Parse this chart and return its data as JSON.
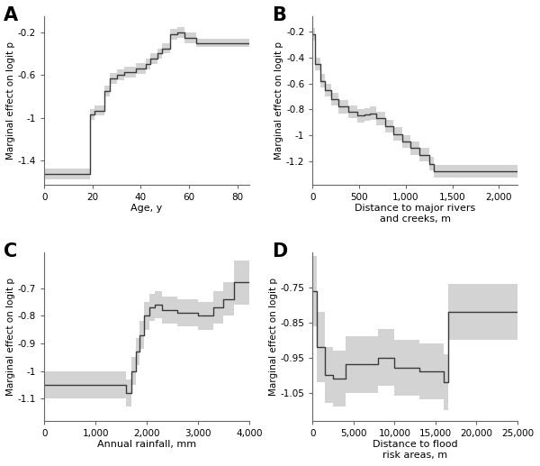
{
  "panel_labels": [
    "A",
    "B",
    "C",
    "D"
  ],
  "ylabel": "Marginal effect on logit p",
  "line_color": "#3a3a3a",
  "ci_color": "#b0b0b0",
  "ci_alpha": 0.55,
  "line_width": 1.0,
  "background_color": "#ffffff",
  "A": {
    "xlabel": "Age, y",
    "xlim": [
      0,
      85
    ],
    "ylim": [
      -1.62,
      -0.05
    ],
    "yticks": [
      -0.2,
      -0.6,
      -1.0,
      -1.4
    ],
    "xticks": [
      0,
      20,
      40,
      60,
      80
    ],
    "x": [
      0,
      19,
      19,
      21,
      21,
      25,
      25,
      27,
      27,
      30,
      30,
      33,
      33,
      38,
      38,
      42,
      42,
      44,
      44,
      47,
      47,
      49,
      49,
      52,
      52,
      55,
      55,
      58,
      58,
      63,
      63,
      85
    ],
    "y": [
      -1.52,
      -1.52,
      -0.97,
      -0.97,
      -0.93,
      -0.93,
      -0.75,
      -0.75,
      -0.63,
      -0.63,
      -0.6,
      -0.6,
      -0.57,
      -0.57,
      -0.54,
      -0.54,
      -0.5,
      -0.5,
      -0.45,
      -0.45,
      -0.4,
      -0.4,
      -0.35,
      -0.35,
      -0.22,
      -0.22,
      -0.2,
      -0.2,
      -0.25,
      -0.25,
      -0.3,
      -0.3
    ],
    "ci_lower": [
      -1.57,
      -1.57,
      -1.02,
      -1.02,
      -0.98,
      -0.98,
      -0.8,
      -0.8,
      -0.68,
      -0.68,
      -0.65,
      -0.65,
      -0.62,
      -0.62,
      -0.59,
      -0.59,
      -0.55,
      -0.55,
      -0.5,
      -0.5,
      -0.45,
      -0.45,
      -0.4,
      -0.4,
      -0.27,
      -0.27,
      -0.25,
      -0.25,
      -0.3,
      -0.3,
      -0.34,
      -0.34
    ],
    "ci_upper": [
      -1.47,
      -1.47,
      -0.92,
      -0.92,
      -0.88,
      -0.88,
      -0.7,
      -0.7,
      -0.58,
      -0.58,
      -0.55,
      -0.55,
      -0.52,
      -0.52,
      -0.49,
      -0.49,
      -0.45,
      -0.45,
      -0.4,
      -0.4,
      -0.35,
      -0.35,
      -0.3,
      -0.3,
      -0.17,
      -0.17,
      -0.15,
      -0.15,
      -0.2,
      -0.2,
      -0.26,
      -0.26
    ]
  },
  "B": {
    "xlabel": "Distance to major rivers\nand creeks, m",
    "xlim": [
      0,
      2200
    ],
    "ylim": [
      -1.38,
      -0.08
    ],
    "yticks": [
      -0.2,
      -0.4,
      -0.6,
      -0.8,
      -1.0,
      -1.2
    ],
    "xticks": [
      0,
      500,
      1000,
      1500,
      2000
    ],
    "x": [
      0,
      30,
      30,
      80,
      80,
      130,
      130,
      200,
      200,
      280,
      280,
      380,
      380,
      480,
      480,
      560,
      560,
      620,
      620,
      680,
      680,
      780,
      780,
      870,
      870,
      960,
      960,
      1050,
      1050,
      1150,
      1150,
      1250,
      1250,
      1300,
      1300,
      2200
    ],
    "y": [
      -0.22,
      -0.22,
      -0.45,
      -0.45,
      -0.58,
      -0.58,
      -0.65,
      -0.65,
      -0.72,
      -0.72,
      -0.78,
      -0.78,
      -0.82,
      -0.82,
      -0.85,
      -0.85,
      -0.84,
      -0.84,
      -0.83,
      -0.83,
      -0.87,
      -0.87,
      -0.93,
      -0.93,
      -0.99,
      -0.99,
      -1.05,
      -1.05,
      -1.1,
      -1.1,
      -1.15,
      -1.15,
      -1.22,
      -1.22,
      -1.28,
      -1.28
    ],
    "ci_lower": [
      -0.27,
      -0.27,
      -0.5,
      -0.5,
      -0.63,
      -0.63,
      -0.7,
      -0.7,
      -0.77,
      -0.77,
      -0.83,
      -0.83,
      -0.87,
      -0.87,
      -0.9,
      -0.9,
      -0.89,
      -0.89,
      -0.88,
      -0.88,
      -0.92,
      -0.92,
      -0.98,
      -0.98,
      -1.04,
      -1.04,
      -1.1,
      -1.1,
      -1.15,
      -1.15,
      -1.2,
      -1.2,
      -1.27,
      -1.27,
      -1.33,
      -1.33
    ],
    "ci_upper": [
      -0.17,
      -0.17,
      -0.4,
      -0.4,
      -0.53,
      -0.53,
      -0.6,
      -0.6,
      -0.67,
      -0.67,
      -0.73,
      -0.73,
      -0.77,
      -0.77,
      -0.8,
      -0.8,
      -0.79,
      -0.79,
      -0.78,
      -0.78,
      -0.82,
      -0.82,
      -0.88,
      -0.88,
      -0.94,
      -0.94,
      -1.0,
      -1.0,
      -1.05,
      -1.05,
      -1.1,
      -1.1,
      -1.17,
      -1.17,
      -1.23,
      -1.23
    ]
  },
  "C": {
    "xlabel": "Annual rainfall, mm",
    "xlim": [
      0,
      4000
    ],
    "ylim": [
      -1.18,
      -0.57
    ],
    "yticks": [
      -0.7,
      -0.8,
      -0.9,
      -1.0,
      -1.1
    ],
    "xticks": [
      0,
      1000,
      2000,
      3000,
      4000
    ],
    "x": [
      0,
      1600,
      1600,
      1700,
      1700,
      1780,
      1780,
      1850,
      1850,
      1950,
      1950,
      2050,
      2050,
      2150,
      2150,
      2300,
      2300,
      2600,
      2600,
      3000,
      3000,
      3300,
      3300,
      3500,
      3500,
      3700,
      3700,
      4000
    ],
    "y": [
      -1.05,
      -1.05,
      -1.08,
      -1.08,
      -1.0,
      -1.0,
      -0.93,
      -0.93,
      -0.87,
      -0.87,
      -0.8,
      -0.8,
      -0.77,
      -0.77,
      -0.76,
      -0.76,
      -0.78,
      -0.78,
      -0.79,
      -0.79,
      -0.8,
      -0.8,
      -0.77,
      -0.77,
      -0.74,
      -0.74,
      -0.68,
      -0.68
    ],
    "ci_lower": [
      -1.1,
      -1.1,
      -1.13,
      -1.13,
      -1.05,
      -1.05,
      -0.98,
      -0.98,
      -0.92,
      -0.92,
      -0.85,
      -0.85,
      -0.82,
      -0.82,
      -0.81,
      -0.81,
      -0.83,
      -0.83,
      -0.84,
      -0.84,
      -0.85,
      -0.85,
      -0.83,
      -0.83,
      -0.8,
      -0.8,
      -0.76,
      -0.76
    ],
    "ci_upper": [
      -1.0,
      -1.0,
      -1.03,
      -1.03,
      -0.95,
      -0.95,
      -0.88,
      -0.88,
      -0.82,
      -0.82,
      -0.75,
      -0.75,
      -0.72,
      -0.72,
      -0.71,
      -0.71,
      -0.73,
      -0.73,
      -0.74,
      -0.74,
      -0.75,
      -0.75,
      -0.71,
      -0.71,
      -0.68,
      -0.68,
      -0.6,
      -0.6
    ]
  },
  "D": {
    "xlabel": "Distance to flood\nrisk areas, m",
    "xlim": [
      0,
      25000
    ],
    "ylim": [
      -1.13,
      -0.65
    ],
    "yticks": [
      -0.75,
      -0.85,
      -0.95,
      -1.05
    ],
    "xticks": [
      0,
      5000,
      10000,
      15000,
      20000,
      25000
    ],
    "x": [
      0,
      500,
      500,
      1500,
      1500,
      2500,
      2500,
      4000,
      4000,
      8000,
      8000,
      10000,
      10000,
      13000,
      13000,
      16000,
      16000,
      16500,
      16500,
      25000
    ],
    "y": [
      -0.76,
      -0.76,
      -0.92,
      -0.92,
      -1.0,
      -1.0,
      -1.01,
      -1.01,
      -0.97,
      -0.97,
      -0.95,
      -0.95,
      -0.98,
      -0.98,
      -0.99,
      -0.99,
      -1.02,
      -1.02,
      -0.82,
      -0.82
    ],
    "ci_lower": [
      -0.86,
      -0.86,
      -1.02,
      -1.02,
      -1.08,
      -1.08,
      -1.09,
      -1.09,
      -1.05,
      -1.05,
      -1.03,
      -1.03,
      -1.06,
      -1.06,
      -1.07,
      -1.07,
      -1.1,
      -1.1,
      -0.9,
      -0.9
    ],
    "ci_upper": [
      -0.66,
      -0.66,
      -0.82,
      -0.82,
      -0.92,
      -0.92,
      -0.93,
      -0.93,
      -0.89,
      -0.89,
      -0.87,
      -0.87,
      -0.9,
      -0.9,
      -0.91,
      -0.91,
      -0.94,
      -0.94,
      -0.74,
      -0.74
    ]
  }
}
